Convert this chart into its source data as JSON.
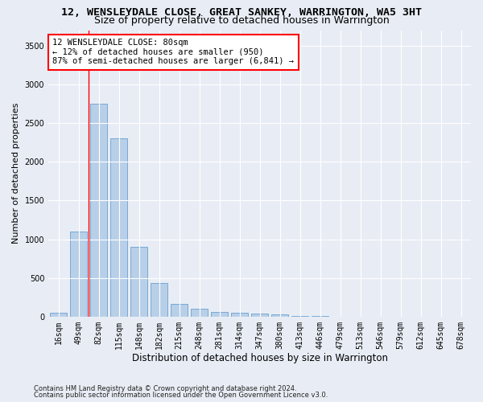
{
  "title1": "12, WENSLEYDALE CLOSE, GREAT SANKEY, WARRINGTON, WA5 3HT",
  "title2": "Size of property relative to detached houses in Warrington",
  "xlabel": "Distribution of detached houses by size in Warrington",
  "ylabel": "Number of detached properties",
  "categories": [
    "16sqm",
    "49sqm",
    "82sqm",
    "115sqm",
    "148sqm",
    "182sqm",
    "215sqm",
    "248sqm",
    "281sqm",
    "314sqm",
    "347sqm",
    "380sqm",
    "413sqm",
    "446sqm",
    "479sqm",
    "513sqm",
    "546sqm",
    "579sqm",
    "612sqm",
    "645sqm",
    "678sqm"
  ],
  "values": [
    50,
    1100,
    2750,
    2300,
    900,
    430,
    165,
    100,
    65,
    50,
    35,
    30,
    10,
    5,
    2,
    1,
    0,
    0,
    0,
    0,
    0
  ],
  "bar_color": "#b8cfe8",
  "bar_edge_color": "#6a9fd0",
  "red_line_x": 1.5,
  "annotation_text": "12 WENSLEYDALE CLOSE: 80sqm\n← 12% of detached houses are smaller (950)\n87% of semi-detached houses are larger (6,841) →",
  "annotation_box_color": "white",
  "annotation_box_edge_color": "red",
  "ylim": [
    0,
    3700
  ],
  "yticks": [
    0,
    500,
    1000,
    1500,
    2000,
    2500,
    3000,
    3500
  ],
  "background_color": "#e8edf5",
  "plot_background_color": "#e8edf5",
  "footnote1": "Contains HM Land Registry data © Crown copyright and database right 2024.",
  "footnote2": "Contains public sector information licensed under the Open Government Licence v3.0.",
  "title1_fontsize": 9.5,
  "title2_fontsize": 9,
  "xlabel_fontsize": 8.5,
  "ylabel_fontsize": 8,
  "tick_fontsize": 7,
  "annotation_fontsize": 7.5,
  "footnote_fontsize": 6
}
